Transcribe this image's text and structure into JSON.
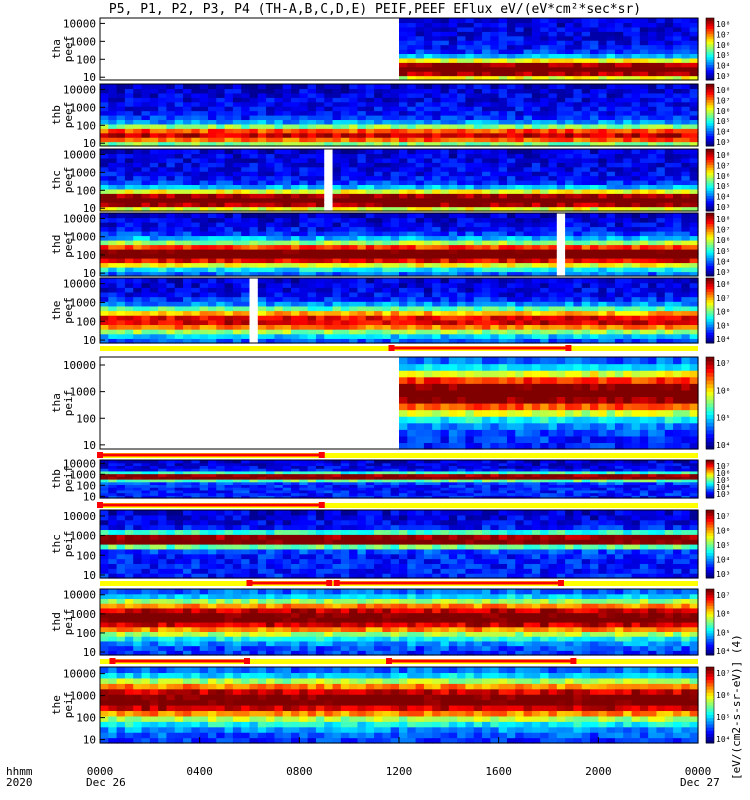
{
  "title": "P5, P1, P2, P3, P4 (TH-A,B,C,D,E) PEIF,PEEF EFlux eV/(eV*cm²*sec*sr)",
  "x_axis": {
    "unit_label": "hhmm",
    "year_label": "2020",
    "ticks": [
      "0000",
      "0400",
      "0800",
      "1200",
      "1600",
      "2000",
      "0000"
    ],
    "date_start": "Dec 26",
    "date_end": "Dec 27"
  },
  "chart_data": {
    "type": "heatmap",
    "x_range_hours": [
      0,
      24
    ],
    "y_scale": "log",
    "y_tick_labels": [
      "10000",
      "1000",
      "100",
      "10"
    ],
    "y_tick_values": [
      10000,
      1000,
      100,
      10
    ],
    "colorbar_title": "[eV/(cm2-s-sr-eV)] (4)",
    "panels": [
      {
        "label": "tha\npeef",
        "ylim": [
          7,
          20000
        ],
        "cbar_ticks": [
          "10⁸",
          "10⁷",
          "10⁶",
          "10⁵",
          "10⁴",
          "10³"
        ],
        "cbar_range": [
          3,
          8
        ],
        "data_start_h": 11.9,
        "data_end_h": 24,
        "dominant_band": "low-energy red"
      },
      {
        "label": "thb\npeef",
        "ylim": [
          7,
          20000
        ],
        "cbar_ticks": [
          "10⁸",
          "10⁷",
          "10⁶",
          "10⁵",
          "10⁴",
          "10³"
        ],
        "cbar_range": [
          3,
          8
        ],
        "data_start_h": 0,
        "data_end_h": 24,
        "dominant_band": "low-energy yellow"
      },
      {
        "label": "thc\npeef",
        "ylim": [
          7,
          20000
        ],
        "cbar_ticks": [
          "10⁸",
          "10⁷",
          "10⁶",
          "10⁵",
          "10⁴",
          "10³"
        ],
        "cbar_range": [
          3,
          8
        ],
        "data_start_h": 0,
        "data_end_h": 24,
        "gaps_h": [
          [
            9.0,
            9.3
          ]
        ],
        "dominant_band": "low-energy red"
      },
      {
        "label": "thd\npeef",
        "ylim": [
          7,
          20000
        ],
        "cbar_ticks": [
          "10⁸",
          "10⁷",
          "10⁶",
          "10⁵",
          "10⁴",
          "10³"
        ],
        "cbar_range": [
          3,
          8
        ],
        "data_start_h": 0,
        "data_end_h": 24,
        "gaps_h": [
          [
            18.4,
            18.6
          ]
        ],
        "dominant_band": "mid-energy red"
      },
      {
        "label": "the\npeef",
        "ylim": [
          7,
          20000
        ],
        "cbar_ticks": [
          "10⁸",
          "10⁷",
          "10⁶",
          "10⁵",
          "10⁴"
        ],
        "cbar_range": [
          4,
          8
        ],
        "data_start_h": 0,
        "data_end_h": 24,
        "gaps_h": [
          [
            6.1,
            6.3
          ]
        ],
        "dominant_band": "mid-energy yellow"
      },
      {
        "label": "tha\npeif",
        "ylim": [
          7,
          20000
        ],
        "cbar_ticks": [
          "10⁷",
          "10⁶",
          "10⁵",
          "10⁴"
        ],
        "cbar_range": [
          3.5,
          7.5
        ],
        "data_start_h": 11.9,
        "data_end_h": 24,
        "dominant_band": "high-energy red"
      },
      {
        "label": "thb\npeif",
        "ylim": [
          7,
          20000
        ],
        "cbar_ticks": [
          "10⁷",
          "10⁶",
          "10⁵",
          "10⁴",
          "10³"
        ],
        "cbar_range": [
          3,
          7.5
        ],
        "data_start_h": 0,
        "data_end_h": 24,
        "dominant_band": "1 keV red"
      },
      {
        "label": "thc\npeif",
        "ylim": [
          7,
          20000
        ],
        "cbar_ticks": [
          "10⁷",
          "10⁶",
          "10⁵",
          "10⁴",
          "10³"
        ],
        "cbar_range": [
          3,
          7.5
        ],
        "data_start_h": 0,
        "data_end_h": 24,
        "dominant_band": "1 keV red"
      },
      {
        "label": "thd\npeif",
        "ylim": [
          7,
          20000
        ],
        "cbar_ticks": [
          "10⁷",
          "10⁶",
          "10⁵",
          "10⁴"
        ],
        "cbar_range": [
          3.5,
          7.5
        ],
        "data_start_h": 0,
        "data_end_h": 24,
        "dominant_band": "broad high-energy red"
      },
      {
        "label": "the\npeif",
        "ylim": [
          7,
          20000
        ],
        "cbar_ticks": [
          "10⁷",
          "10⁶",
          "10⁵",
          "10⁴"
        ],
        "cbar_range": [
          3.5,
          7.5
        ],
        "data_start_h": 0,
        "data_end_h": 24,
        "dominant_band": "broad high-energy red"
      }
    ],
    "mode_bars": [
      {
        "after_panel": 4,
        "red_segments_h": [
          [
            11.7,
            18.8
          ]
        ]
      },
      {
        "after_panel": 5,
        "red_segments_h": [
          [
            0.0,
            8.9
          ]
        ]
      },
      {
        "after_panel": 6,
        "red_segments_h": [
          [
            0.0,
            8.9
          ]
        ]
      },
      {
        "after_panel": 7,
        "red_segments_h": [
          [
            6.0,
            9.2
          ],
          [
            9.5,
            18.5
          ]
        ]
      },
      {
        "after_panel": 8,
        "red_segments_h": [
          [
            0.5,
            5.9
          ],
          [
            11.6,
            19.0
          ]
        ]
      }
    ]
  },
  "colors": {
    "mode_bar_base": "#ffff00",
    "mode_bar_segment": "#ff0000",
    "gap": "#ffffff"
  }
}
